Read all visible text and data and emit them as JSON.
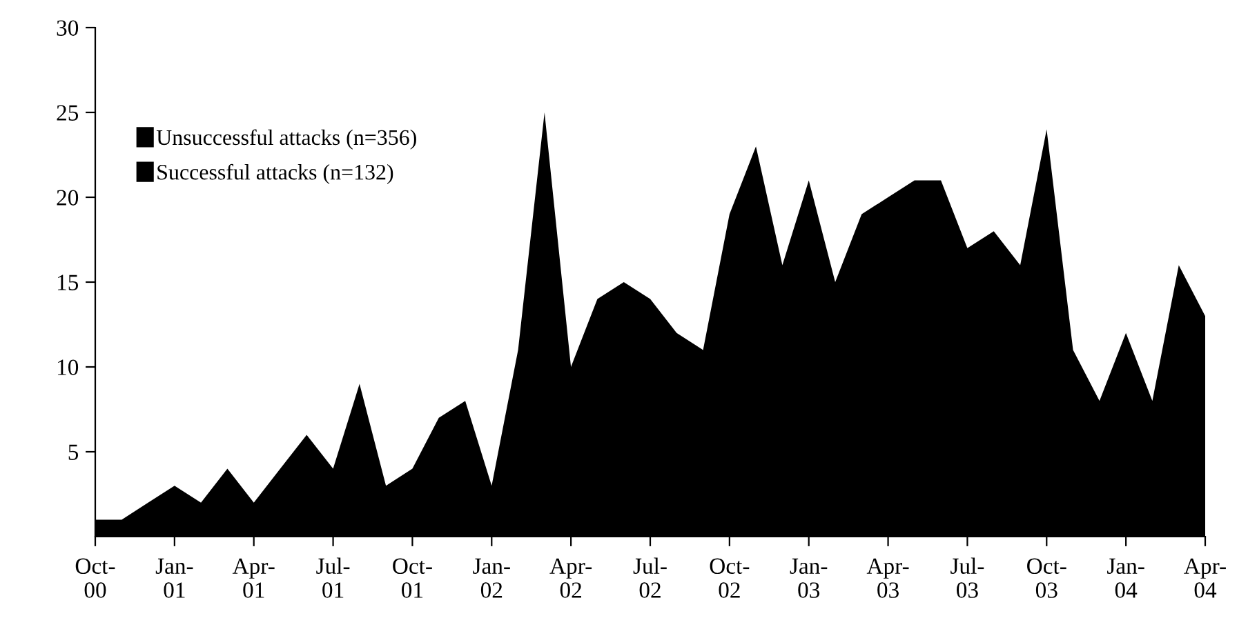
{
  "chart_data": {
    "type": "area",
    "categories": [
      "Oct-\n00",
      null,
      null,
      "Jan-\n01",
      null,
      null,
      "Apr-\n01",
      null,
      null,
      "Jul-\n01",
      null,
      null,
      "Oct-\n01",
      null,
      null,
      "Jan-\n02",
      null,
      null,
      "Apr-\n02",
      null,
      null,
      "Jul-\n02",
      null,
      null,
      "Oct-\n02",
      null,
      null,
      "Jan-\n03",
      null,
      null,
      "Apr-\n03",
      null,
      null,
      "Jul-\n03",
      null,
      null,
      "Oct-\n03",
      null,
      null,
      "Jan-\n04",
      null,
      null,
      "Apr-\n04"
    ],
    "series": [
      {
        "name": "Unsuccessful attacks (n=356)",
        "color": "#000000",
        "values": [
          1,
          1,
          2,
          3,
          2,
          4,
          2,
          4,
          6,
          4,
          9,
          3,
          4,
          7,
          8,
          3,
          11,
          25,
          10,
          14,
          15,
          14,
          12,
          11,
          19,
          23,
          16,
          21,
          15,
          19,
          20,
          21,
          21,
          17,
          18,
          16,
          24,
          11,
          8,
          12,
          8,
          16,
          13
        ]
      },
      {
        "name": "Successful attacks (n=132)",
        "color": "#000000",
        "values": [
          null,
          null,
          null,
          null,
          null,
          null,
          null,
          null,
          null,
          null,
          null,
          null,
          null,
          null,
          null,
          null,
          null,
          null,
          null,
          null,
          null,
          null,
          null,
          null,
          null,
          null,
          null,
          null,
          null,
          null,
          null,
          null,
          null,
          null,
          null,
          null,
          null,
          null,
          null,
          null,
          null,
          null,
          null
        ]
      }
    ],
    "ylim": [
      0,
      30
    ],
    "yticks": [
      5,
      10,
      15,
      20,
      25,
      30
    ],
    "legend": "top left",
    "grid": false
  }
}
